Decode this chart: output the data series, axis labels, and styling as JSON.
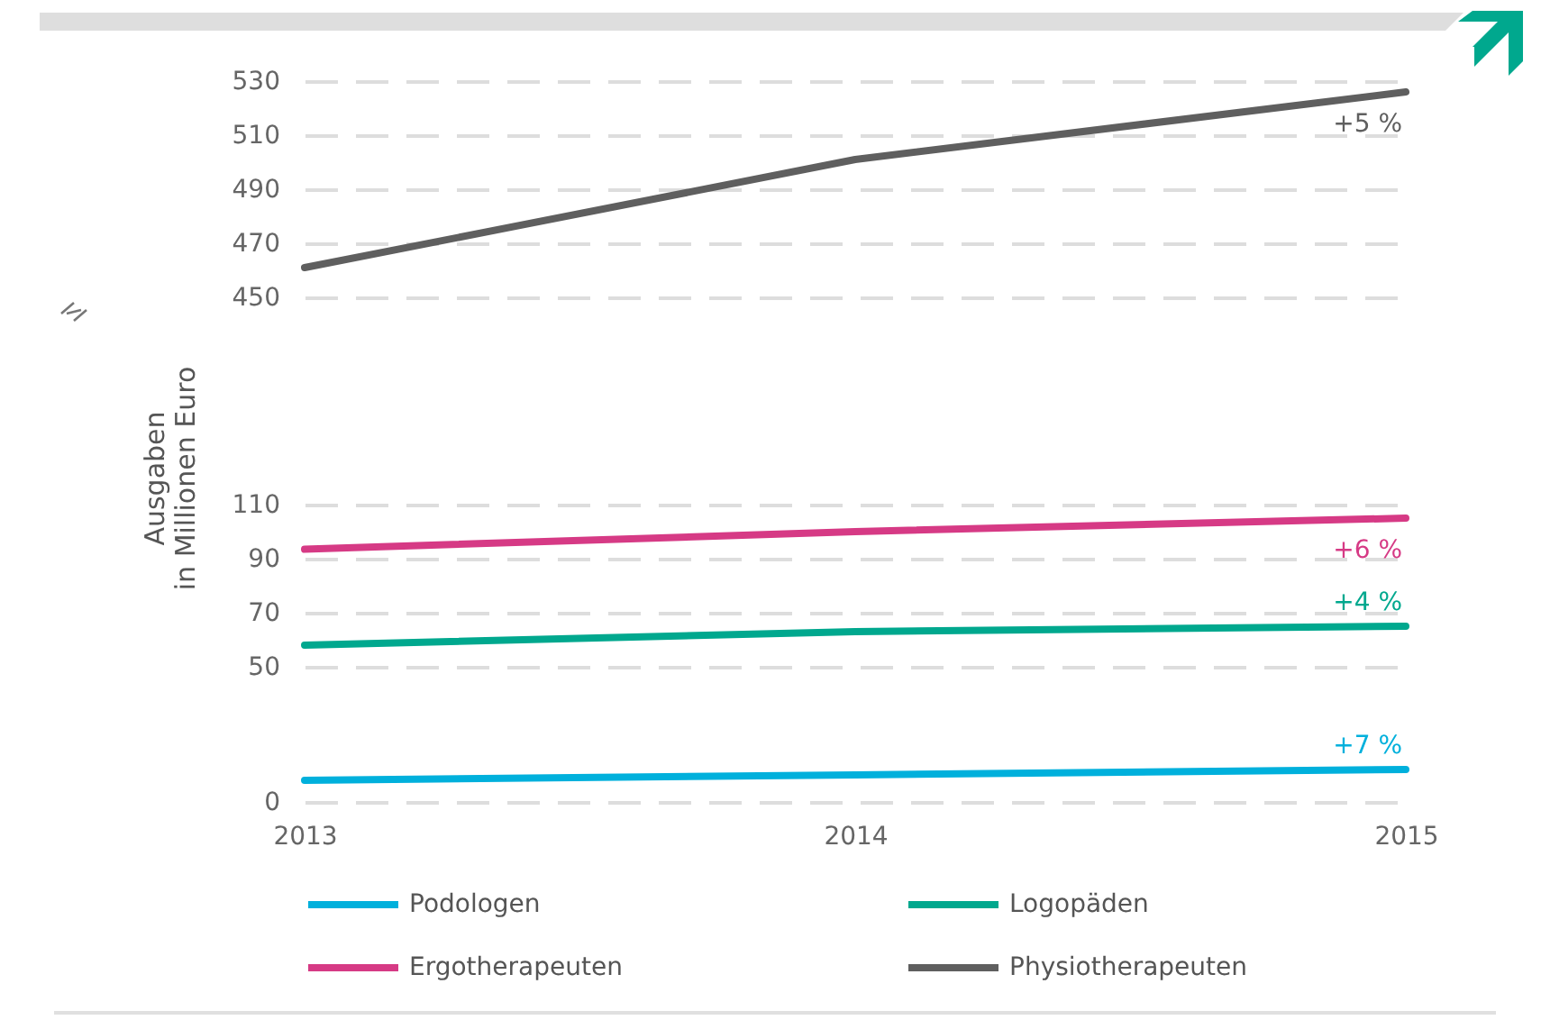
{
  "chart_data": [
    {
      "type": "line",
      "categories": [
        "2013",
        "2014",
        "2015"
      ],
      "series": [
        {
          "name": "Physiotherapeuten",
          "color": "#5f5f5f",
          "values": [
            461,
            501,
            526
          ]
        }
      ],
      "ylim": [
        450,
        530
      ],
      "yticks": [
        450,
        470,
        490,
        510,
        530
      ],
      "grid": "y",
      "legend": "bottom",
      "tick_labels": "y",
      "annotations": [
        {
          "text": "+5 %",
          "x": "2015",
          "y": 526
        }
      ]
    },
    {
      "type": "line",
      "ylabel": "Ausgaben\nin Millionen Euro",
      "categories": [
        "2013",
        "2014",
        "2015"
      ],
      "series": [
        {
          "name": "Podologen",
          "color": "#00b0dc",
          "values": [
            8,
            10,
            12
          ]
        },
        {
          "name": "Logopäden",
          "color": "#00a88e",
          "values": [
            58,
            63,
            65
          ]
        },
        {
          "name": "Ergotherapeuten",
          "color": "#d63a85",
          "values": [
            93.5,
            100,
            105
          ]
        }
      ],
      "ylim": [
        0,
        110
      ],
      "yticks": [
        0,
        50,
        70,
        90,
        110
      ],
      "grid": "y",
      "legend": "bottom",
      "annotations": [
        {
          "text": "+6 %",
          "x": "2015",
          "y": 105
        },
        {
          "text": "+4 %",
          "x": "2015",
          "y": 65
        },
        {
          "text": "+7 %",
          "x": "2015",
          "y": 12
        }
      ]
    }
  ]
}
